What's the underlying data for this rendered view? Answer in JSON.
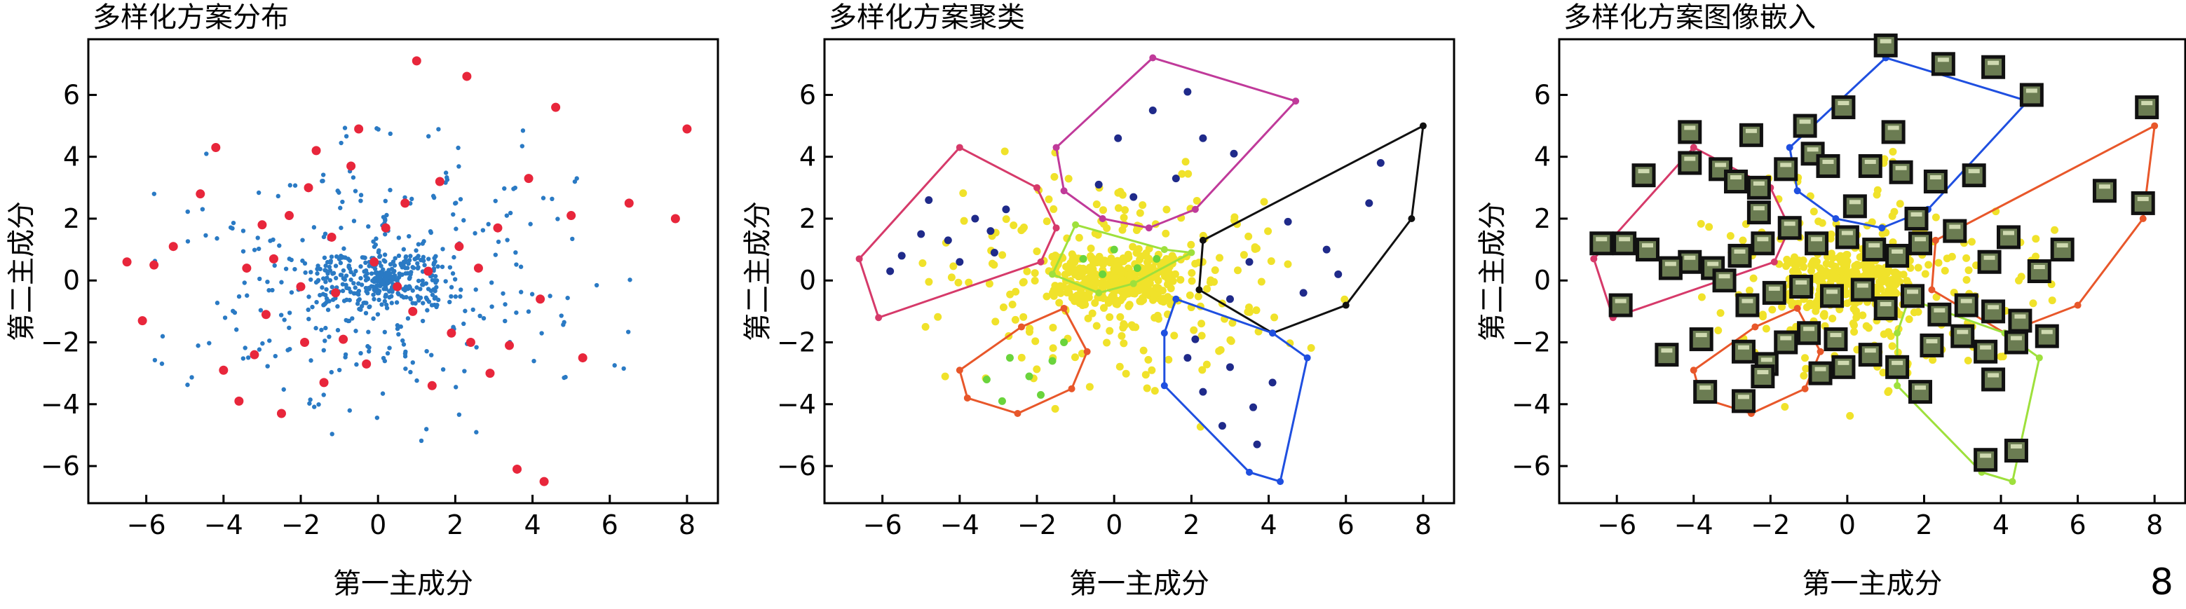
{
  "page_number": "8",
  "colors": {
    "blue_dot": "#2a7ac4",
    "red_dot": "#e8263b",
    "yellow_dot": "#f0e22a",
    "navy_dot": "#1f2a8a",
    "green_dot": "#6ad43c",
    "thumb_fill": "#6b7c52"
  },
  "chart_data": [
    {
      "type": "scatter",
      "title": "多样化方案分布",
      "xlabel": "第一主成分",
      "ylabel": "第二主成分",
      "xlim": [
        -7.5,
        8.8
      ],
      "ylim": [
        -7.2,
        7.8
      ],
      "xticks": [
        -6,
        -4,
        -2,
        0,
        2,
        4,
        6,
        8
      ],
      "yticks": [
        -6,
        -4,
        -2,
        0,
        2,
        4,
        6
      ],
      "series": [
        {
          "color": "blue",
          "radial_points": true
        },
        {
          "color": "red",
          "points": [
            [
              -6.5,
              0.6
            ],
            [
              -6.1,
              -1.3
            ],
            [
              -5.8,
              0.5
            ],
            [
              -5.3,
              1.1
            ],
            [
              -4.6,
              2.8
            ],
            [
              -4.2,
              4.3
            ],
            [
              -4.0,
              -2.9
            ],
            [
              -3.6,
              -3.9
            ],
            [
              -3.4,
              0.4
            ],
            [
              -3.2,
              -2.4
            ],
            [
              -3.0,
              1.8
            ],
            [
              -2.9,
              -1.1
            ],
            [
              -2.7,
              0.7
            ],
            [
              -2.5,
              -4.3
            ],
            [
              -2.3,
              2.1
            ],
            [
              -2.0,
              -0.2
            ],
            [
              -1.9,
              -2.0
            ],
            [
              -1.8,
              3.0
            ],
            [
              -1.6,
              4.2
            ],
            [
              -1.4,
              -3.3
            ],
            [
              -1.2,
              1.4
            ],
            [
              -1.1,
              -0.4
            ],
            [
              -0.9,
              -1.9
            ],
            [
              -0.7,
              3.7
            ],
            [
              -0.5,
              4.9
            ],
            [
              -0.3,
              -2.7
            ],
            [
              -0.1,
              0.6
            ],
            [
              0.2,
              1.7
            ],
            [
              0.5,
              -0.2
            ],
            [
              0.7,
              2.5
            ],
            [
              0.9,
              -1.0
            ],
            [
              1.0,
              7.1
            ],
            [
              1.3,
              0.3
            ],
            [
              1.4,
              -3.4
            ],
            [
              1.6,
              3.2
            ],
            [
              1.9,
              -1.7
            ],
            [
              2.1,
              1.1
            ],
            [
              2.3,
              6.6
            ],
            [
              2.4,
              -2.0
            ],
            [
              2.6,
              0.4
            ],
            [
              2.9,
              -3.0
            ],
            [
              3.1,
              1.7
            ],
            [
              3.4,
              -2.1
            ],
            [
              3.6,
              -6.1
            ],
            [
              3.9,
              3.3
            ],
            [
              4.2,
              -0.6
            ],
            [
              4.3,
              -6.5
            ],
            [
              4.6,
              5.6
            ],
            [
              5.0,
              2.1
            ],
            [
              5.3,
              -2.5
            ],
            [
              6.5,
              2.5
            ],
            [
              7.7,
              2.0
            ],
            [
              8.0,
              4.9
            ]
          ]
        }
      ]
    },
    {
      "type": "scatter",
      "title": "多样化方案聚类",
      "xlabel": "第一主成分",
      "ylabel": "第二主成分",
      "xlim": [
        -7.5,
        8.8
      ],
      "ylim": [
        -7.2,
        7.8
      ],
      "xticks": [
        -6,
        -4,
        -2,
        0,
        2,
        4,
        6,
        8
      ],
      "yticks": [
        -6,
        -4,
        -2,
        0,
        2,
        4,
        6
      ],
      "clusters": [
        {
          "color": "#d63a6a",
          "hull": [
            [
              -6.6,
              0.7
            ],
            [
              -4.0,
              4.3
            ],
            [
              -2.0,
              3.0
            ],
            [
              -1.5,
              1.7
            ],
            [
              -1.9,
              0.6
            ],
            [
              -6.1,
              -1.2
            ]
          ],
          "points": [
            [
              -5.5,
              0.8
            ],
            [
              -5.0,
              1.5
            ],
            [
              -4.3,
              1.3
            ],
            [
              -3.6,
              2.0
            ],
            [
              -3.2,
              1.6
            ],
            [
              -2.8,
              2.3
            ],
            [
              -4.0,
              0.6
            ],
            [
              -3.1,
              0.9
            ],
            [
              -4.8,
              2.6
            ],
            [
              -5.8,
              0.3
            ]
          ]
        },
        {
          "color": "#e8572a",
          "hull": [
            [
              -4.0,
              -2.9
            ],
            [
              -3.8,
              -3.8
            ],
            [
              -2.5,
              -4.3
            ],
            [
              -1.1,
              -3.5
            ],
            [
              -0.7,
              -2.3
            ],
            [
              -1.3,
              -0.9
            ],
            [
              -2.4,
              -1.5
            ]
          ],
          "points": [
            [
              -3.3,
              -3.2
            ],
            [
              -2.7,
              -2.5
            ],
            [
              -2.2,
              -3.1
            ],
            [
              -1.6,
              -2.6
            ],
            [
              -1.9,
              -3.7
            ],
            [
              -1.3,
              -2.0
            ],
            [
              -2.9,
              -3.9
            ]
          ]
        },
        {
          "color": "#c03a9a",
          "hull": [
            [
              -1.5,
              4.3
            ],
            [
              1.0,
              7.2
            ],
            [
              4.7,
              5.8
            ],
            [
              2.1,
              2.3
            ],
            [
              0.9,
              1.7
            ],
            [
              -0.3,
              2.0
            ],
            [
              -1.3,
              2.9
            ]
          ],
          "points": [
            [
              0.1,
              4.6
            ],
            [
              1.0,
              5.5
            ],
            [
              2.3,
              4.6
            ],
            [
              1.6,
              3.3
            ],
            [
              -0.4,
              3.1
            ],
            [
              3.1,
              4.1
            ],
            [
              0.5,
              2.7
            ],
            [
              1.9,
              6.1
            ]
          ]
        },
        {
          "color": "#111111",
          "hull": [
            [
              2.3,
              1.3
            ],
            [
              8.0,
              5.0
            ],
            [
              7.7,
              2.0
            ],
            [
              6.0,
              -0.8
            ],
            [
              4.1,
              -1.7
            ],
            [
              2.2,
              -0.3
            ]
          ],
          "points": [
            [
              3.5,
              0.6
            ],
            [
              4.5,
              1.9
            ],
            [
              5.5,
              1.0
            ],
            [
              6.6,
              2.5
            ],
            [
              3.0,
              -0.6
            ],
            [
              4.9,
              -0.4
            ],
            [
              6.9,
              3.8
            ],
            [
              5.8,
              0.2
            ]
          ]
        },
        {
          "color": "#1f4fe0",
          "hull": [
            [
              1.6,
              -0.6
            ],
            [
              4.1,
              -1.7
            ],
            [
              5.0,
              -2.5
            ],
            [
              4.3,
              -6.5
            ],
            [
              3.5,
              -6.2
            ],
            [
              1.3,
              -3.4
            ],
            [
              1.3,
              -1.7
            ]
          ],
          "points": [
            [
              2.1,
              -1.9
            ],
            [
              3.0,
              -2.8
            ],
            [
              3.6,
              -4.1
            ],
            [
              2.3,
              -3.6
            ],
            [
              4.1,
              -3.3
            ],
            [
              2.8,
              -4.7
            ],
            [
              3.7,
              -5.3
            ],
            [
              1.9,
              -2.5
            ]
          ]
        },
        {
          "color": "#9ee03c",
          "hull": [
            [
              -1.6,
              0.2
            ],
            [
              -1.0,
              1.8
            ],
            [
              1.3,
              1.0
            ],
            [
              2.0,
              0.9
            ],
            [
              0.5,
              -0.1
            ],
            [
              -0.4,
              -0.4
            ]
          ],
          "points": [
            [
              -0.8,
              0.7
            ],
            [
              0.0,
              1.0
            ],
            [
              0.6,
              0.4
            ],
            [
              1.1,
              0.7
            ],
            [
              -0.3,
              0.2
            ]
          ]
        }
      ]
    },
    {
      "type": "scatter",
      "title": "多样化方案图像嵌入",
      "xlabel": "第一主成分",
      "ylabel": "第二主成分",
      "xlim": [
        -7.5,
        8.8
      ],
      "ylim": [
        -7.2,
        7.8
      ],
      "xticks": [
        -6,
        -4,
        -2,
        0,
        2,
        4,
        6,
        8
      ],
      "yticks": [
        -6,
        -4,
        -2,
        0,
        2,
        4,
        6
      ],
      "clusters": [
        {
          "color": "#d63a6a",
          "hull": [
            [
              -6.6,
              0.7
            ],
            [
              -4.0,
              4.3
            ],
            [
              -2.0,
              3.0
            ],
            [
              -1.5,
              1.7
            ],
            [
              -1.9,
              0.6
            ],
            [
              -6.1,
              -1.2
            ]
          ]
        },
        {
          "color": "#e8572a",
          "hull": [
            [
              -4.0,
              -2.9
            ],
            [
              -3.8,
              -3.8
            ],
            [
              -2.5,
              -4.3
            ],
            [
              -1.1,
              -3.5
            ],
            [
              -0.7,
              -2.3
            ],
            [
              -1.3,
              -0.9
            ],
            [
              -2.4,
              -1.5
            ]
          ]
        },
        {
          "color": "#1f4fe0",
          "hull": [
            [
              -1.5,
              4.3
            ],
            [
              1.0,
              7.2
            ],
            [
              4.7,
              5.8
            ],
            [
              2.1,
              2.3
            ],
            [
              0.9,
              1.7
            ],
            [
              -0.3,
              2.0
            ],
            [
              -1.3,
              2.9
            ]
          ]
        },
        {
          "color": "#e8572a",
          "hull": [
            [
              2.3,
              1.3
            ],
            [
              8.0,
              5.0
            ],
            [
              7.7,
              2.0
            ],
            [
              6.0,
              -0.8
            ],
            [
              4.1,
              -1.7
            ],
            [
              2.2,
              -0.3
            ]
          ]
        },
        {
          "color": "#9ee03c",
          "hull": [
            [
              1.6,
              -0.6
            ],
            [
              4.1,
              -1.7
            ],
            [
              5.0,
              -2.5
            ],
            [
              4.3,
              -6.5
            ],
            [
              3.5,
              -6.2
            ],
            [
              1.3,
              -3.4
            ],
            [
              1.3,
              -1.7
            ]
          ]
        }
      ],
      "image_points": [
        [
          1.0,
          7.6
        ],
        [
          2.5,
          7.0
        ],
        [
          3.8,
          6.9
        ],
        [
          4.8,
          6.0
        ],
        [
          7.8,
          5.6
        ],
        [
          -0.1,
          5.6
        ],
        [
          -1.1,
          5.0
        ],
        [
          -4.1,
          4.8
        ],
        [
          -2.5,
          4.7
        ],
        [
          -0.9,
          4.1
        ],
        [
          1.2,
          4.8
        ],
        [
          -5.3,
          3.4
        ],
        [
          -4.1,
          3.8
        ],
        [
          -3.3,
          3.6
        ],
        [
          -2.9,
          3.2
        ],
        [
          -2.3,
          3.0
        ],
        [
          -1.6,
          3.6
        ],
        [
          -0.5,
          3.7
        ],
        [
          0.6,
          3.7
        ],
        [
          1.4,
          3.5
        ],
        [
          2.3,
          3.2
        ],
        [
          3.3,
          3.4
        ],
        [
          -6.4,
          1.2
        ],
        [
          -5.8,
          1.2
        ],
        [
          -5.2,
          1.0
        ],
        [
          -4.1,
          0.6
        ],
        [
          -3.5,
          0.4
        ],
        [
          -2.8,
          0.8
        ],
        [
          -2.2,
          1.2
        ],
        [
          -1.5,
          1.7
        ],
        [
          -0.8,
          1.2
        ],
        [
          0.0,
          1.4
        ],
        [
          0.7,
          1.0
        ],
        [
          1.3,
          0.8
        ],
        [
          1.9,
          1.2
        ],
        [
          2.8,
          1.6
        ],
        [
          3.7,
          0.6
        ],
        [
          4.2,
          1.4
        ],
        [
          5.0,
          0.3
        ],
        [
          5.6,
          1.0
        ],
        [
          6.7,
          2.9
        ],
        [
          7.7,
          2.5
        ],
        [
          -5.9,
          -0.8
        ],
        [
          -4.6,
          0.4
        ],
        [
          -3.2,
          0.0
        ],
        [
          -2.6,
          -0.8
        ],
        [
          -1.9,
          -0.4
        ],
        [
          -1.2,
          -0.2
        ],
        [
          -0.4,
          -0.5
        ],
        [
          0.4,
          -0.3
        ],
        [
          1.0,
          -0.9
        ],
        [
          1.7,
          -0.5
        ],
        [
          2.4,
          -1.1
        ],
        [
          3.1,
          -0.8
        ],
        [
          3.8,
          -1.0
        ],
        [
          4.5,
          -1.3
        ],
        [
          -4.7,
          -2.4
        ],
        [
          -3.8,
          -1.9
        ],
        [
          -2.7,
          -2.3
        ],
        [
          -2.1,
          -2.7
        ],
        [
          -1.6,
          -2.0
        ],
        [
          -1.0,
          -1.7
        ],
        [
          -0.3,
          -1.9
        ],
        [
          0.6,
          -2.4
        ],
        [
          1.3,
          -2.8
        ],
        [
          2.2,
          -2.1
        ],
        [
          3.0,
          -1.8
        ],
        [
          3.6,
          -2.3
        ],
        [
          4.4,
          -2.0
        ],
        [
          -3.7,
          -3.6
        ],
        [
          -2.7,
          -3.9
        ],
        [
          -2.2,
          -3.1
        ],
        [
          -0.7,
          -3.0
        ],
        [
          -0.1,
          -2.8
        ],
        [
          1.9,
          -3.6
        ],
        [
          3.8,
          -3.2
        ],
        [
          4.4,
          -5.5
        ],
        [
          3.6,
          -5.8
        ],
        [
          5.2,
          -1.8
        ],
        [
          -2.3,
          2.2
        ],
        [
          0.2,
          2.4
        ],
        [
          1.8,
          2.0
        ]
      ]
    }
  ]
}
